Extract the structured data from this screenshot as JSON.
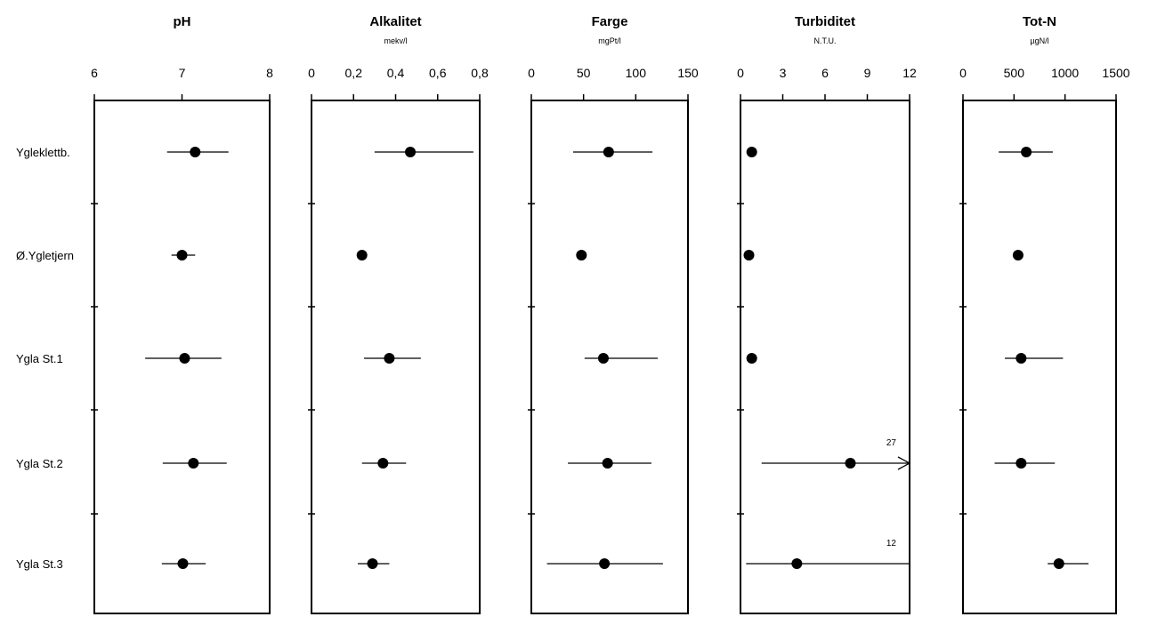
{
  "chart_data": {
    "type": "scatter",
    "stations": [
      "Ygleklettb.",
      "Ø.Ygletjern",
      "Ygla St.1",
      "Ygla St.2",
      "Ygla St.3"
    ],
    "panels": [
      {
        "title": "pH",
        "unit": "",
        "ticks": [
          "6",
          "7",
          "8"
        ],
        "tick_values": [
          6,
          7,
          8
        ],
        "xlim": [
          6,
          8
        ],
        "points": [
          {
            "mean": 7.15,
            "min": 6.83,
            "max": 7.53
          },
          {
            "mean": 7.0,
            "min": 6.88,
            "max": 7.15
          },
          {
            "mean": 7.03,
            "min": 6.58,
            "max": 7.45
          },
          {
            "mean": 7.13,
            "min": 6.78,
            "max": 7.51
          },
          {
            "mean": 7.01,
            "min": 6.77,
            "max": 7.27
          }
        ]
      },
      {
        "title": "Alkalitet",
        "unit": "mekv/l",
        "ticks": [
          "0",
          "0,2",
          "0,4",
          "0,6",
          "0,8"
        ],
        "tick_values": [
          0,
          0.2,
          0.4,
          0.6,
          0.8
        ],
        "xlim": [
          0,
          0.8
        ],
        "points": [
          {
            "mean": 0.47,
            "min": 0.3,
            "max": 0.77
          },
          {
            "mean": 0.24,
            "min": 0.24,
            "max": 0.24
          },
          {
            "mean": 0.37,
            "min": 0.25,
            "max": 0.52
          },
          {
            "mean": 0.34,
            "min": 0.24,
            "max": 0.45
          },
          {
            "mean": 0.29,
            "min": 0.22,
            "max": 0.37
          }
        ]
      },
      {
        "title": "Farge",
        "unit": "mgPt/l",
        "ticks": [
          "0",
          "50",
          "100",
          "150"
        ],
        "tick_values": [
          0,
          50,
          100,
          150
        ],
        "xlim": [
          0,
          150
        ],
        "points": [
          {
            "mean": 74,
            "min": 40,
            "max": 116
          },
          {
            "mean": 48,
            "min": 48,
            "max": 48
          },
          {
            "mean": 69,
            "min": 51,
            "max": 121
          },
          {
            "mean": 73,
            "min": 35,
            "max": 115
          },
          {
            "mean": 70,
            "min": 15,
            "max": 126
          }
        ]
      },
      {
        "title": "Turbiditet",
        "unit": "N.T.U.",
        "ticks": [
          "0",
          "3",
          "6",
          "9",
          "12"
        ],
        "tick_values": [
          0,
          3,
          6,
          9,
          12
        ],
        "xlim": [
          0,
          12
        ],
        "points": [
          {
            "mean": 0.8,
            "min": 0.8,
            "max": 0.8
          },
          {
            "mean": 0.6,
            "min": 0.6,
            "max": 0.6
          },
          {
            "mean": 0.8,
            "min": 0.8,
            "max": 0.8
          },
          {
            "mean": 7.8,
            "min": 1.5,
            "max": 12,
            "arrow": true,
            "annotation": "27"
          },
          {
            "mean": 4.0,
            "min": 0.4,
            "max": 12,
            "arrow": false,
            "annotation": "12"
          }
        ]
      },
      {
        "title": "Tot-N",
        "unit": "µgN/l",
        "ticks": [
          "0",
          "500",
          "1000",
          "1500"
        ],
        "tick_values": [
          0,
          500,
          1000,
          1500
        ],
        "xlim": [
          0,
          1500
        ],
        "points": [
          {
            "mean": 620,
            "min": 350,
            "max": 880
          },
          {
            "mean": 540,
            "min": 540,
            "max": 540
          },
          {
            "mean": 570,
            "min": 410,
            "max": 980
          },
          {
            "mean": 570,
            "min": 310,
            "max": 900
          },
          {
            "mean": 940,
            "min": 830,
            "max": 1230
          }
        ]
      }
    ],
    "grid": false,
    "legend": "none"
  }
}
